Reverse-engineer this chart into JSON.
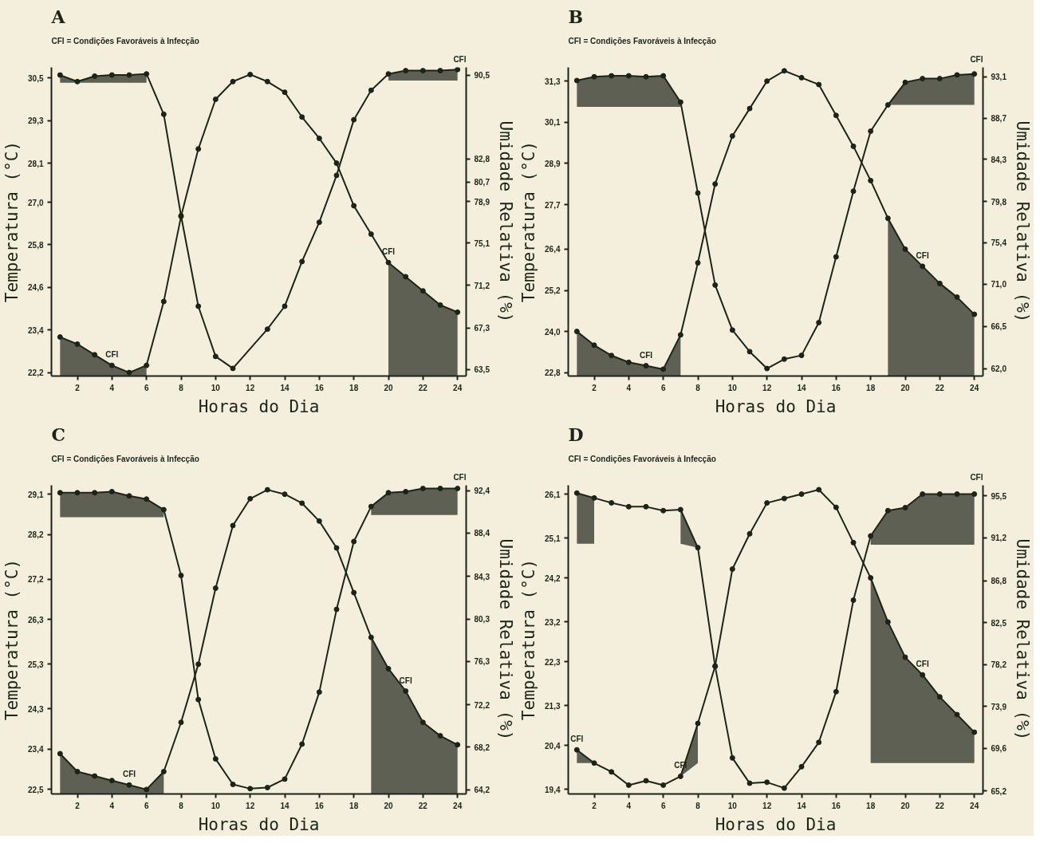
{
  "chart_data": [
    {
      "type": "line",
      "title": "A",
      "annotations": [
        "CFI = Condições Favoráveis à Infecção",
        "CFI",
        {
          "text": "CFI",
          "x": 4,
          "y": 22.4
        },
        {
          "text": "CFI",
          "x": 20,
          "y": 25.3
        }
      ],
      "xlabel": "Horas do Dia",
      "ylabel": "Temperatura (°C)",
      "y2label": "Umidade Relativa (%)",
      "xlim": [
        0.5,
        24.5
      ],
      "xticks": [
        2,
        4,
        6,
        8,
        10,
        12,
        14,
        16,
        18,
        20,
        22,
        24
      ],
      "ylim": [
        22.1,
        30.8
      ],
      "yticks": [
        {
          "value": 22.2,
          "label": "22,2"
        },
        {
          "value": 23.4,
          "label": "23,4"
        },
        {
          "value": 24.6,
          "label": "24,6"
        },
        {
          "value": 25.8,
          "label": "25,8"
        },
        {
          "value": 27.0,
          "label": "27,0"
        },
        {
          "value": 28.1,
          "label": "28,1"
        },
        {
          "value": 29.3,
          "label": "29,3"
        },
        {
          "value": 30.5,
          "label": "30,5"
        }
      ],
      "y2lim": [
        62.9,
        91.2
      ],
      "y2ticks": [
        {
          "value": 63.5,
          "label": "63,5"
        },
        {
          "value": 67.3,
          "label": "67,3"
        },
        {
          "value": 71.2,
          "label": "71,2"
        },
        {
          "value": 75.1,
          "label": "75,1"
        },
        {
          "value": 78.9,
          "label": "78,9"
        },
        {
          "value": 82.8,
          "label": "82,8"
        },
        {
          "value": 80.7,
          "label": "80,7"
        },
        {
          "value": 90.5,
          "label": "90,5"
        }
      ],
      "marker": "circle",
      "grid": false,
      "series": [
        {
          "color": "#1c2418",
          "x": [
            1,
            2,
            3,
            4,
            5,
            6,
            7,
            8,
            9,
            10,
            11,
            12,
            13,
            14,
            15,
            16,
            17,
            18,
            19,
            20,
            21,
            22,
            23,
            24
          ],
          "values": [
            23.2,
            23.0,
            22.7,
            22.4,
            22.2,
            22.4,
            24.2,
            26.6,
            28.5,
            29.9,
            30.4,
            30.6,
            30.4,
            30.1,
            29.4,
            28.8,
            28.1,
            26.9,
            26.1,
            25.3,
            24.9,
            24.5,
            24.1,
            23.9
          ],
          "lower": [
            22.1,
            22.1,
            22.1,
            22.1,
            22.1,
            22.1,
            null,
            null,
            null,
            null,
            null,
            null,
            null,
            null,
            null,
            null,
            null,
            null,
            null,
            22.1,
            22.1,
            22.1,
            22.1,
            22.1
          ],
          "upper": [
            23.2,
            23.0,
            22.7,
            22.4,
            22.2,
            22.4,
            null,
            null,
            null,
            null,
            null,
            null,
            null,
            null,
            null,
            null,
            null,
            null,
            null,
            25.3,
            24.9,
            24.5,
            24.1,
            23.9
          ]
        },
        {
          "axis": "y2",
          "color": "#1c2418",
          "x": [
            1,
            2,
            3,
            4,
            5,
            6,
            7,
            8,
            9,
            10,
            11,
            13,
            14,
            15,
            16,
            17,
            18,
            19,
            20,
            21,
            22,
            23,
            24
          ],
          "values": [
            90.5,
            89.9,
            90.4,
            90.5,
            90.5,
            90.6,
            86.9,
            77.6,
            69.3,
            64.7,
            63.6,
            67.2,
            69.3,
            73.4,
            77.0,
            81.3,
            86.4,
            89.1,
            90.6,
            90.9,
            90.9,
            90.9,
            91.0
          ],
          "lower": [
            89.8,
            89.8,
            89.8,
            89.8,
            89.8,
            89.8,
            null,
            null,
            null,
            null,
            null,
            null,
            null,
            null,
            null,
            null,
            null,
            null,
            90.0,
            90.0,
            90.0,
            90.0,
            90.0
          ],
          "upper": [
            90.5,
            89.9,
            90.4,
            90.5,
            90.5,
            90.6,
            null,
            null,
            null,
            null,
            null,
            null,
            null,
            null,
            null,
            null,
            null,
            null,
            90.6,
            90.9,
            90.9,
            90.9,
            91.0
          ]
        }
      ]
    },
    {
      "type": "line",
      "title": "B",
      "annotations": [
        "CFI = Condições Favoráveis à Infecção",
        "CFI",
        {
          "text": "CFI",
          "x": 5,
          "y": 23.0
        },
        {
          "text": "CFI",
          "x": 21,
          "y": 25.9
        }
      ],
      "xlabel": "Horas do Dia",
      "ylabel": "Temperatura (°C)",
      "y2label": "Umidade Relativa (%)",
      "xlim": [
        0.5,
        24.5
      ],
      "xticks": [
        2,
        4,
        6,
        8,
        10,
        12,
        14,
        16,
        18,
        20,
        22,
        24
      ],
      "ylim": [
        22.7,
        31.7
      ],
      "yticks": [
        {
          "value": 22.8,
          "label": "22,8"
        },
        {
          "value": 24.0,
          "label": "24,0"
        },
        {
          "value": 25.2,
          "label": "25,2"
        },
        {
          "value": 26.4,
          "label": "26,4"
        },
        {
          "value": 27.7,
          "label": "27,7"
        },
        {
          "value": 28.9,
          "label": "28,9"
        },
        {
          "value": 30.1,
          "label": "30,1"
        },
        {
          "value": 31.3,
          "label": "31,3"
        }
      ],
      "y2lim": [
        61.2,
        94.1
      ],
      "y2ticks": [
        {
          "value": 62.0,
          "label": "62,0"
        },
        {
          "value": 66.5,
          "label": "66,5"
        },
        {
          "value": 71.0,
          "label": "71,0"
        },
        {
          "value": 75.4,
          "label": "75,4"
        },
        {
          "value": 79.8,
          "label": "79,8"
        },
        {
          "value": 84.3,
          "label": "84,3"
        },
        {
          "value": 88.7,
          "label": "88,7"
        },
        {
          "value": 93.1,
          "label": "93,1"
        }
      ],
      "marker": "circle",
      "grid": false,
      "series": [
        {
          "color": "#1c2418",
          "x": [
            1,
            2,
            3,
            4,
            5,
            6,
            7,
            8,
            9,
            10,
            11,
            12,
            13,
            14,
            15,
            16,
            17,
            18,
            19,
            20,
            21,
            22,
            23,
            24
          ],
          "values": [
            24.0,
            23.6,
            23.3,
            23.1,
            23.0,
            22.9,
            23.9,
            26.0,
            28.3,
            29.7,
            30.5,
            31.3,
            31.6,
            31.4,
            31.2,
            30.3,
            29.4,
            28.4,
            27.3,
            26.4,
            25.9,
            25.4,
            25.0,
            24.5
          ],
          "lower": [
            22.7,
            22.7,
            22.7,
            22.7,
            22.7,
            22.7,
            22.7,
            null,
            null,
            null,
            null,
            null,
            null,
            null,
            null,
            null,
            null,
            null,
            22.7,
            22.7,
            22.7,
            22.7,
            22.7,
            22.7
          ],
          "upper": [
            24.0,
            23.6,
            23.3,
            23.1,
            23.0,
            22.9,
            23.9,
            null,
            null,
            null,
            null,
            null,
            null,
            null,
            null,
            null,
            null,
            null,
            27.3,
            26.4,
            25.9,
            25.4,
            25.0,
            24.5
          ]
        },
        {
          "axis": "y2",
          "color": "#1c2418",
          "x": [
            1,
            2,
            3,
            4,
            5,
            6,
            7,
            8,
            9,
            10,
            11,
            12,
            13,
            14,
            15,
            16,
            17,
            18,
            19,
            20,
            21,
            22,
            23,
            24
          ],
          "values": [
            92.7,
            93.1,
            93.2,
            93.2,
            93.1,
            93.2,
            90.4,
            80.7,
            70.9,
            66.1,
            63.8,
            62.0,
            63.0,
            63.4,
            66.9,
            73.9,
            80.9,
            87.3,
            90.1,
            92.5,
            92.9,
            92.9,
            93.3,
            93.4
          ],
          "lower": [
            89.9,
            89.9,
            89.9,
            89.9,
            89.9,
            89.9,
            89.9,
            null,
            null,
            null,
            null,
            null,
            null,
            null,
            null,
            null,
            null,
            null,
            90.1,
            90.1,
            90.1,
            90.1,
            90.1,
            90.1
          ],
          "upper": [
            92.7,
            93.1,
            93.2,
            93.2,
            93.1,
            93.2,
            90.4,
            null,
            null,
            null,
            null,
            null,
            null,
            null,
            null,
            null,
            null,
            null,
            90.1,
            92.5,
            92.9,
            92.9,
            93.3,
            93.4
          ]
        }
      ]
    },
    {
      "type": "line",
      "title": "C",
      "annotations": [
        "CFI = Condições Favoráveis à Infecção",
        "CFI",
        {
          "text": "CFI",
          "x": 5,
          "y": 22.6
        },
        {
          "text": "CFI",
          "x": 21,
          "y": 24.7
        }
      ],
      "xlabel": "Horas do Dia",
      "ylabel": "Temperatura (°C)",
      "y2label": "Umidade Relativa (%)",
      "xlim": [
        0.5,
        24.5
      ],
      "xticks": [
        2,
        4,
        6,
        8,
        10,
        12,
        14,
        16,
        18,
        20,
        22,
        24
      ],
      "ylim": [
        22.4,
        29.3
      ],
      "yticks": [
        {
          "value": 22.5,
          "label": "22,5"
        },
        {
          "value": 23.4,
          "label": "23,4"
        },
        {
          "value": 24.3,
          "label": "24,3"
        },
        {
          "value": 25.3,
          "label": "25,3"
        },
        {
          "value": 26.3,
          "label": "26,3"
        },
        {
          "value": 27.2,
          "label": "27,2"
        },
        {
          "value": 28.2,
          "label": "28,2"
        },
        {
          "value": 29.1,
          "label": "29,1"
        }
      ],
      "y2lim": [
        63.8,
        92.9
      ],
      "y2ticks": [
        {
          "value": 64.2,
          "label": "64,2"
        },
        {
          "value": 68.2,
          "label": "68,2"
        },
        {
          "value": 72.2,
          "label": "72,2"
        },
        {
          "value": 76.3,
          "label": "76,3"
        },
        {
          "value": 80.3,
          "label": "80,3"
        },
        {
          "value": 84.3,
          "label": "84,3"
        },
        {
          "value": 88.4,
          "label": "88,4"
        },
        {
          "value": 92.4,
          "label": "92,4"
        }
      ],
      "marker": "circle",
      "grid": false,
      "series": [
        {
          "color": "#1c2418",
          "x": [
            1,
            2,
            3,
            4,
            5,
            6,
            7,
            8,
            9,
            10,
            11,
            12,
            13,
            14,
            15,
            16,
            17,
            18,
            19,
            20,
            21,
            22,
            23,
            24
          ],
          "values": [
            23.3,
            22.9,
            22.8,
            22.7,
            22.6,
            22.5,
            22.9,
            24.0,
            25.3,
            27.0,
            28.4,
            29.0,
            29.2,
            29.1,
            28.9,
            28.5,
            27.9,
            26.9,
            25.9,
            25.2,
            24.7,
            24.0,
            23.7,
            23.5
          ],
          "lower": [
            22.4,
            22.4,
            22.4,
            22.4,
            22.4,
            22.4,
            22.4,
            null,
            null,
            null,
            null,
            null,
            null,
            null,
            null,
            null,
            null,
            null,
            22.4,
            22.4,
            22.4,
            22.4,
            22.4,
            22.4
          ],
          "upper": [
            23.3,
            22.9,
            22.8,
            22.7,
            22.6,
            22.5,
            22.9,
            null,
            null,
            null,
            null,
            null,
            null,
            null,
            null,
            null,
            null,
            null,
            25.9,
            25.2,
            24.7,
            24.0,
            23.7,
            23.5
          ]
        },
        {
          "axis": "y2",
          "color": "#1c2418",
          "x": [
            1,
            2,
            3,
            4,
            5,
            6,
            7,
            8,
            9,
            10,
            11,
            12,
            13,
            14,
            15,
            16,
            17,
            18,
            19,
            20,
            21,
            22,
            23,
            24
          ],
          "values": [
            92.2,
            92.2,
            92.2,
            92.3,
            91.9,
            91.6,
            90.6,
            84.4,
            72.7,
            67.1,
            64.7,
            64.3,
            64.4,
            65.2,
            68.5,
            73.4,
            81.2,
            87.6,
            90.9,
            92.2,
            92.3,
            92.6,
            92.6,
            92.6
          ],
          "lower": [
            89.9,
            89.9,
            89.9,
            89.9,
            89.9,
            89.9,
            89.9,
            null,
            null,
            null,
            null,
            null,
            null,
            null,
            null,
            null,
            null,
            null,
            90.1,
            90.1,
            90.1,
            90.1,
            90.1,
            90.1
          ],
          "upper": [
            92.2,
            92.2,
            92.2,
            92.3,
            91.9,
            91.6,
            90.6,
            null,
            null,
            null,
            null,
            null,
            null,
            null,
            null,
            null,
            null,
            null,
            90.9,
            92.2,
            92.3,
            92.6,
            92.6,
            92.6
          ]
        }
      ]
    },
    {
      "type": "line",
      "title": "D",
      "annotations": [
        "CFI = Condições Favoráveis à Infecção",
        "CFI",
        {
          "text": "CFI",
          "x": 1,
          "y": 20.3
        },
        {
          "text": "CFI",
          "x": 7,
          "y": 19.7
        },
        {
          "text": "CFI",
          "x": 21,
          "y": 22.0
        }
      ],
      "xlabel": "Horas do Dia",
      "ylabel": "Temperatura (°C)",
      "y2label": "Umidade Relativa (%)",
      "xlim": [
        0.5,
        24.5
      ],
      "xticks": [
        2,
        4,
        6,
        8,
        10,
        12,
        14,
        16,
        18,
        20,
        22,
        24
      ],
      "ylim": [
        19.3,
        26.3
      ],
      "yticks": [
        {
          "value": 19.4,
          "label": "19,4"
        },
        {
          "value": 20.4,
          "label": "20,4"
        },
        {
          "value": 21.3,
          "label": "21,3"
        },
        {
          "value": 22.3,
          "label": "22,3"
        },
        {
          "value": 23.2,
          "label": "23,2"
        },
        {
          "value": 24.2,
          "label": "24,2"
        },
        {
          "value": 25.1,
          "label": "25,1"
        },
        {
          "value": 26.1,
          "label": "26,1"
        }
      ],
      "y2lim": [
        64.9,
        96.6
      ],
      "y2ticks": [
        {
          "value": 65.2,
          "label": "65,2"
        },
        {
          "value": 69.6,
          "label": "69,6"
        },
        {
          "value": 73.9,
          "label": "73,9"
        },
        {
          "value": 78.2,
          "label": "78,2"
        },
        {
          "value": 82.5,
          "label": "82,5"
        },
        {
          "value": 86.8,
          "label": "86,8"
        },
        {
          "value": 91.2,
          "label": "91,2"
        },
        {
          "value": 95.5,
          "label": "95,5"
        }
      ],
      "marker": "circle",
      "grid": false,
      "series": [
        {
          "color": "#1c2418",
          "x": [
            1,
            2,
            3,
            4,
            5,
            6,
            7,
            8,
            9,
            10,
            11,
            12,
            13,
            14,
            15,
            16,
            17,
            18,
            19,
            20,
            21,
            22,
            23,
            24
          ],
          "values": [
            20.3,
            20.0,
            19.8,
            19.5,
            19.6,
            19.5,
            19.7,
            20.9,
            22.2,
            24.4,
            25.2,
            25.9,
            26.0,
            26.1,
            26.2,
            25.8,
            25.0,
            24.2,
            23.2,
            22.4,
            22.0,
            21.5,
            21.1,
            20.7
          ],
          "lower": [
            20.0,
            20.0,
            null,
            null,
            null,
            null,
            19.7,
            20.0,
            null,
            null,
            null,
            null,
            null,
            null,
            null,
            null,
            null,
            20.0,
            20.0,
            20.0,
            20.0,
            20.0,
            20.0,
            20.0
          ],
          "upper": [
            20.3,
            20.0,
            null,
            null,
            null,
            null,
            19.7,
            20.9,
            null,
            null,
            null,
            null,
            null,
            null,
            null,
            null,
            null,
            24.2,
            23.2,
            22.4,
            22.0,
            21.5,
            21.1,
            20.7
          ]
        },
        {
          "axis": "y2",
          "color": "#1c2418",
          "x": [
            1,
            2,
            3,
            4,
            5,
            6,
            7,
            8,
            9,
            10,
            11,
            12,
            13,
            14,
            15,
            16,
            17,
            18,
            19,
            20,
            21,
            22,
            23,
            24
          ],
          "values": [
            95.8,
            95.3,
            94.8,
            94.4,
            94.4,
            94.0,
            94.1,
            90.2,
            78.0,
            68.6,
            66.0,
            66.1,
            65.5,
            67.7,
            70.2,
            75.4,
            84.8,
            91.4,
            94.0,
            94.3,
            95.7,
            95.7,
            95.7,
            95.7
          ],
          "lower": [
            90.6,
            90.6,
            null,
            null,
            null,
            null,
            90.6,
            90.2,
            null,
            null,
            null,
            null,
            null,
            null,
            null,
            null,
            null,
            90.5,
            90.5,
            90.5,
            90.5,
            90.5,
            90.5,
            90.5
          ],
          "upper": [
            95.8,
            95.3,
            null,
            null,
            null,
            null,
            94.1,
            90.2,
            null,
            null,
            null,
            null,
            null,
            null,
            null,
            null,
            null,
            91.4,
            94.0,
            94.3,
            95.7,
            95.7,
            95.7,
            95.7
          ]
        }
      ]
    }
  ]
}
